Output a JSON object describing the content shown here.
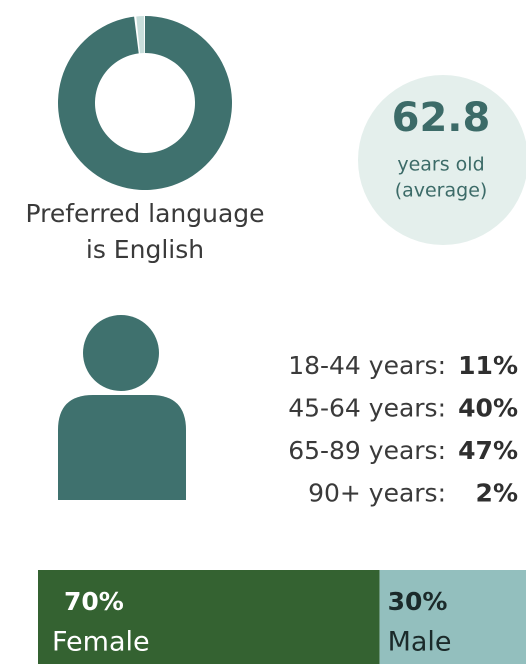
{
  "donut": {
    "value": 98,
    "label": "98%",
    "caption": [
      "Preferred language",
      "is English"
    ]
  },
  "average_age": {
    "value": "62.8",
    "caption": [
      "years old",
      "(average)"
    ]
  },
  "age_groups": [
    {
      "label": "18-44 years:",
      "value": "11%"
    },
    {
      "label": "45-64 years:",
      "value": "40%"
    },
    {
      "label": "65-89 years:",
      "value": "47%"
    },
    {
      "label": "90+ years:",
      "value": "2%"
    }
  ],
  "gender": [
    {
      "name": "Female",
      "value": 70,
      "label": "70%",
      "color": "#346231"
    },
    {
      "name": "Male",
      "value": 30,
      "label": "30%",
      "color": "#93bfbe"
    }
  ]
}
